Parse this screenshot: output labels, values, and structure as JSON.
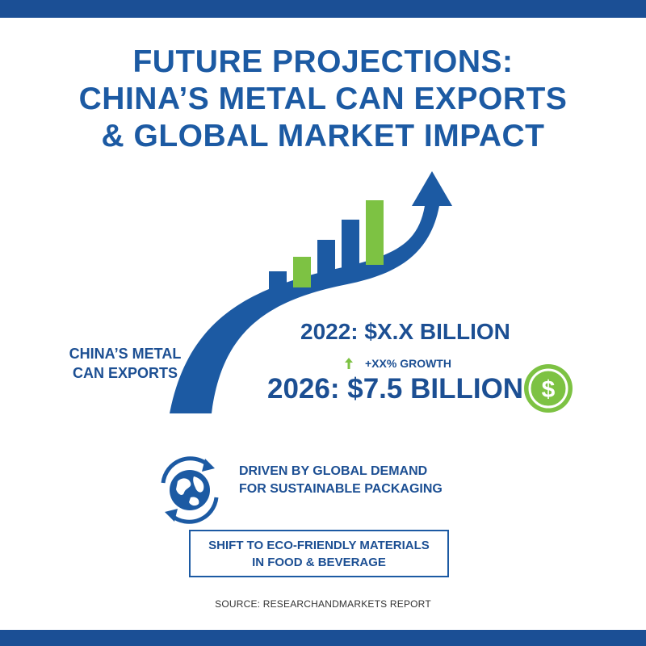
{
  "title": {
    "line1": "FUTURE PROJECTIONS:",
    "line2": "CHINA’S METAL CAN EXPORTS",
    "line3": "& GLOBAL MARKET IMPACT"
  },
  "exports_label": {
    "line1": "CHINA’S METAL",
    "line2": "CAN EXPORTS"
  },
  "figures": {
    "value_2022": "2022: $X.X BILLION",
    "growth": "+XX% GROWTH",
    "value_2026": "2026: $7.5 BILLION"
  },
  "driver": {
    "line1": "DRIVEN BY GLOBAL DEMAND",
    "line2": "FOR SUSTAINABLE PACKAGING"
  },
  "shift": {
    "line1": "SHIFT TO ECO-FRIENDLY MATERIALS",
    "line2": "IN FOOD & BEVERAGE"
  },
  "source": "SOURCE: RESEARCHANDMARKETS REPORT",
  "icons": {
    "growth": "up-arrow-icon",
    "currency": "dollar-icon",
    "driver": "globe-recycle-icon"
  },
  "colors": {
    "brand_blue": "#1c5aa3",
    "accent_green": "#7dc243",
    "band": "#1b4f95"
  }
}
